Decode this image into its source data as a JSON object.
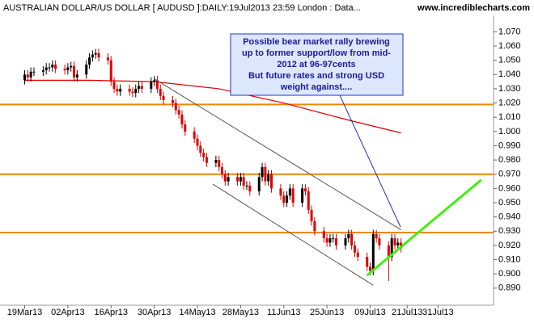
{
  "chart_data": {
    "type": "candlestick",
    "title": "AUSTRALIAN DOLLAR/US DOLLAR [ AUDUSD ]:DAILY:19Jul2013 23:59 London : Data...",
    "source": "www.incrediblecharts.com",
    "x": [
      0,
      1,
      2,
      3,
      6,
      7,
      8,
      9,
      10,
      13,
      14,
      15,
      16,
      17,
      20,
      21,
      22,
      23,
      24,
      27,
      28,
      29,
      30,
      31,
      34,
      35,
      36,
      37,
      38,
      41,
      42,
      43,
      44,
      45,
      48,
      49,
      50,
      51,
      52,
      55,
      56,
      57,
      58,
      59,
      62,
      63,
      64,
      65,
      66,
      69,
      70,
      71,
      72,
      73,
      76,
      77,
      78,
      79,
      80,
      83,
      84,
      85,
      86,
      87,
      90,
      91,
      92,
      93,
      94,
      97,
      98,
      99,
      100,
      101,
      104,
      105,
      106,
      107,
      108,
      111,
      112,
      113,
      114,
      115,
      118,
      119,
      120,
      121,
      122
    ],
    "open": [
      1.036,
      1.04,
      1.038,
      1.042,
      1.042,
      1.043,
      1.045,
      1.045,
      1.047,
      1.044,
      1.043,
      1.045,
      1.046,
      1.038,
      1.04,
      1.047,
      1.052,
      1.054,
      1.055,
      1.052,
      1.05,
      1.035,
      1.03,
      1.028,
      1.03,
      1.028,
      1.027,
      1.03,
      1.032,
      1.03,
      1.035,
      1.036,
      1.03,
      1.025,
      1.022,
      1.02,
      1.015,
      1.012,
      1.005,
      1.0,
      0.995,
      0.99,
      0.985,
      0.982,
      0.978,
      0.98,
      0.975,
      0.97,
      0.965,
      0.968,
      0.965,
      0.968,
      0.962,
      0.962,
      0.958,
      0.968,
      0.975,
      0.965,
      0.97,
      0.96,
      0.955,
      0.95,
      0.955,
      0.96,
      0.95,
      0.96,
      0.958,
      0.945,
      0.937,
      0.93,
      0.925,
      0.922,
      0.925,
      0.925,
      0.92,
      0.925,
      0.928,
      0.92,
      0.915,
      0.912,
      0.905,
      0.902,
      0.928,
      0.925,
      0.92,
      0.912,
      0.925,
      0.92,
      0.922
    ],
    "high": [
      1.043,
      1.043,
      1.045,
      1.045,
      1.046,
      1.048,
      1.048,
      1.05,
      1.05,
      1.047,
      1.048,
      1.049,
      1.049,
      1.043,
      1.05,
      1.055,
      1.057,
      1.058,
      1.058,
      1.055,
      1.053,
      1.038,
      1.033,
      1.033,
      1.033,
      1.031,
      1.033,
      1.035,
      1.035,
      1.038,
      1.039,
      1.039,
      1.033,
      1.028,
      1.025,
      1.023,
      1.018,
      1.015,
      1.008,
      1.003,
      0.998,
      0.993,
      0.988,
      0.985,
      0.983,
      0.983,
      0.978,
      0.973,
      0.971,
      0.971,
      0.971,
      0.971,
      0.965,
      0.965,
      0.971,
      0.978,
      0.978,
      0.973,
      0.973,
      0.963,
      0.958,
      0.958,
      0.963,
      0.963,
      0.963,
      0.963,
      0.961,
      0.948,
      0.94,
      0.933,
      0.928,
      0.928,
      0.928,
      0.928,
      0.928,
      0.931,
      0.931,
      0.923,
      0.918,
      0.915,
      0.908,
      0.931,
      0.931,
      0.928,
      0.923,
      0.928,
      0.928,
      0.925,
      0.925
    ],
    "low": [
      1.033,
      1.035,
      1.035,
      1.039,
      1.039,
      1.04,
      1.042,
      1.042,
      1.041,
      1.04,
      1.04,
      1.042,
      1.035,
      1.035,
      1.037,
      1.044,
      1.049,
      1.051,
      1.049,
      1.047,
      1.032,
      1.027,
      1.025,
      1.025,
      1.025,
      1.024,
      1.024,
      1.027,
      1.027,
      1.027,
      1.032,
      1.027,
      1.022,
      1.019,
      1.017,
      1.012,
      1.009,
      1.002,
      0.997,
      0.992,
      0.987,
      0.982,
      0.979,
      0.975,
      0.975,
      0.972,
      0.967,
      0.962,
      0.962,
      0.962,
      0.962,
      0.959,
      0.959,
      0.955,
      0.955,
      0.965,
      0.962,
      0.962,
      0.957,
      0.952,
      0.947,
      0.947,
      0.952,
      0.947,
      0.947,
      0.955,
      0.942,
      0.934,
      0.927,
      0.922,
      0.919,
      0.919,
      0.922,
      0.917,
      0.917,
      0.922,
      0.917,
      0.912,
      0.909,
      0.902,
      0.899,
      0.899,
      0.922,
      0.917,
      0.895,
      0.909,
      0.917,
      0.917,
      0.915
    ],
    "close": [
      1.04,
      1.038,
      1.042,
      1.042,
      1.043,
      1.045,
      1.045,
      1.047,
      1.044,
      1.043,
      1.045,
      1.046,
      1.038,
      1.04,
      1.047,
      1.052,
      1.054,
      1.055,
      1.052,
      1.05,
      1.035,
      1.03,
      1.028,
      1.03,
      1.028,
      1.027,
      1.03,
      1.032,
      1.03,
      1.035,
      1.036,
      1.03,
      1.025,
      1.022,
      1.02,
      1.015,
      1.012,
      1.005,
      1.0,
      0.995,
      0.99,
      0.985,
      0.982,
      0.978,
      0.98,
      0.975,
      0.97,
      0.965,
      0.968,
      0.965,
      0.968,
      0.962,
      0.962,
      0.958,
      0.968,
      0.975,
      0.965,
      0.97,
      0.96,
      0.955,
      0.95,
      0.955,
      0.96,
      0.95,
      0.96,
      0.958,
      0.945,
      0.937,
      0.93,
      0.925,
      0.922,
      0.925,
      0.925,
      0.92,
      0.925,
      0.928,
      0.92,
      0.915,
      0.912,
      0.905,
      0.902,
      0.928,
      0.925,
      0.92,
      0.912,
      0.925,
      0.92,
      0.922,
      0.918
    ],
    "up_color": "#000000",
    "down_color": "#e00000",
    "xlim": [
      -8,
      152
    ],
    "xticks": [
      {
        "value": 0,
        "label": "19Mar13"
      },
      {
        "value": 14,
        "label": "02Apr13"
      },
      {
        "value": 28,
        "label": "16Apr13"
      },
      {
        "value": 42,
        "label": "30Apr13"
      },
      {
        "value": 56,
        "label": "14May13"
      },
      {
        "value": 70,
        "label": "28May13"
      },
      {
        "value": 84,
        "label": "11Jun13"
      },
      {
        "value": 98,
        "label": "25Jun13"
      },
      {
        "value": 112,
        "label": "09Jul13"
      },
      {
        "value": 124,
        "label": "21Jul13"
      },
      {
        "value": 134,
        "label": "31Jul13"
      }
    ],
    "ylim": [
      0.878,
      1.081
    ],
    "yticks": [
      {
        "value": 1.07,
        "label": "1.070"
      },
      {
        "value": 1.06,
        "label": "1.060"
      },
      {
        "value": 1.05,
        "label": "1.050"
      },
      {
        "value": 1.04,
        "label": "1.040"
      },
      {
        "value": 1.03,
        "label": "1.030"
      },
      {
        "value": 1.02,
        "label": "1.020"
      },
      {
        "value": 1.01,
        "label": "1.010"
      },
      {
        "value": 1.0,
        "label": "1.000"
      },
      {
        "value": 0.99,
        "label": "0.990"
      },
      {
        "value": 0.98,
        "label": "0.980"
      },
      {
        "value": 0.97,
        "label": "0.970"
      },
      {
        "value": 0.96,
        "label": "0.960"
      },
      {
        "value": 0.95,
        "label": "0.950"
      },
      {
        "value": 0.94,
        "label": "0.940"
      },
      {
        "value": 0.93,
        "label": "0.930"
      },
      {
        "value": 0.92,
        "label": "0.920"
      },
      {
        "value": 0.91,
        "label": "0.910"
      },
      {
        "value": 0.9,
        "label": "0.900"
      },
      {
        "value": 0.89,
        "label": "0.890"
      }
    ],
    "moving_average": {
      "color": "#dd0000",
      "x": [
        0,
        21,
        42,
        63,
        84,
        105,
        122
      ],
      "values": [
        1.036,
        1.036,
        1.035,
        1.03,
        1.02,
        1.008,
        0.999
      ]
    },
    "levels": {
      "color": "#ee8800",
      "values": [
        1.019,
        0.97,
        0.929
      ]
    },
    "trendlines": [
      {
        "color": "#555555",
        "x": [
          42,
          122
        ],
        "values": [
          1.037,
          0.931
        ]
      },
      {
        "color": "#555555",
        "x": [
          61,
          113
        ],
        "values": [
          0.963,
          0.892
        ]
      },
      {
        "color": "#44ee11",
        "x": [
          111,
          148
        ],
        "values": [
          0.899,
          0.966
        ]
      }
    ],
    "annotation": {
      "lines": [
        "Possible bear market rally brewing",
        "up to former support/low from mid-",
        "2012 at 96-97cents",
        "But future rates and strong USD",
        "weight against...."
      ]
    }
  }
}
